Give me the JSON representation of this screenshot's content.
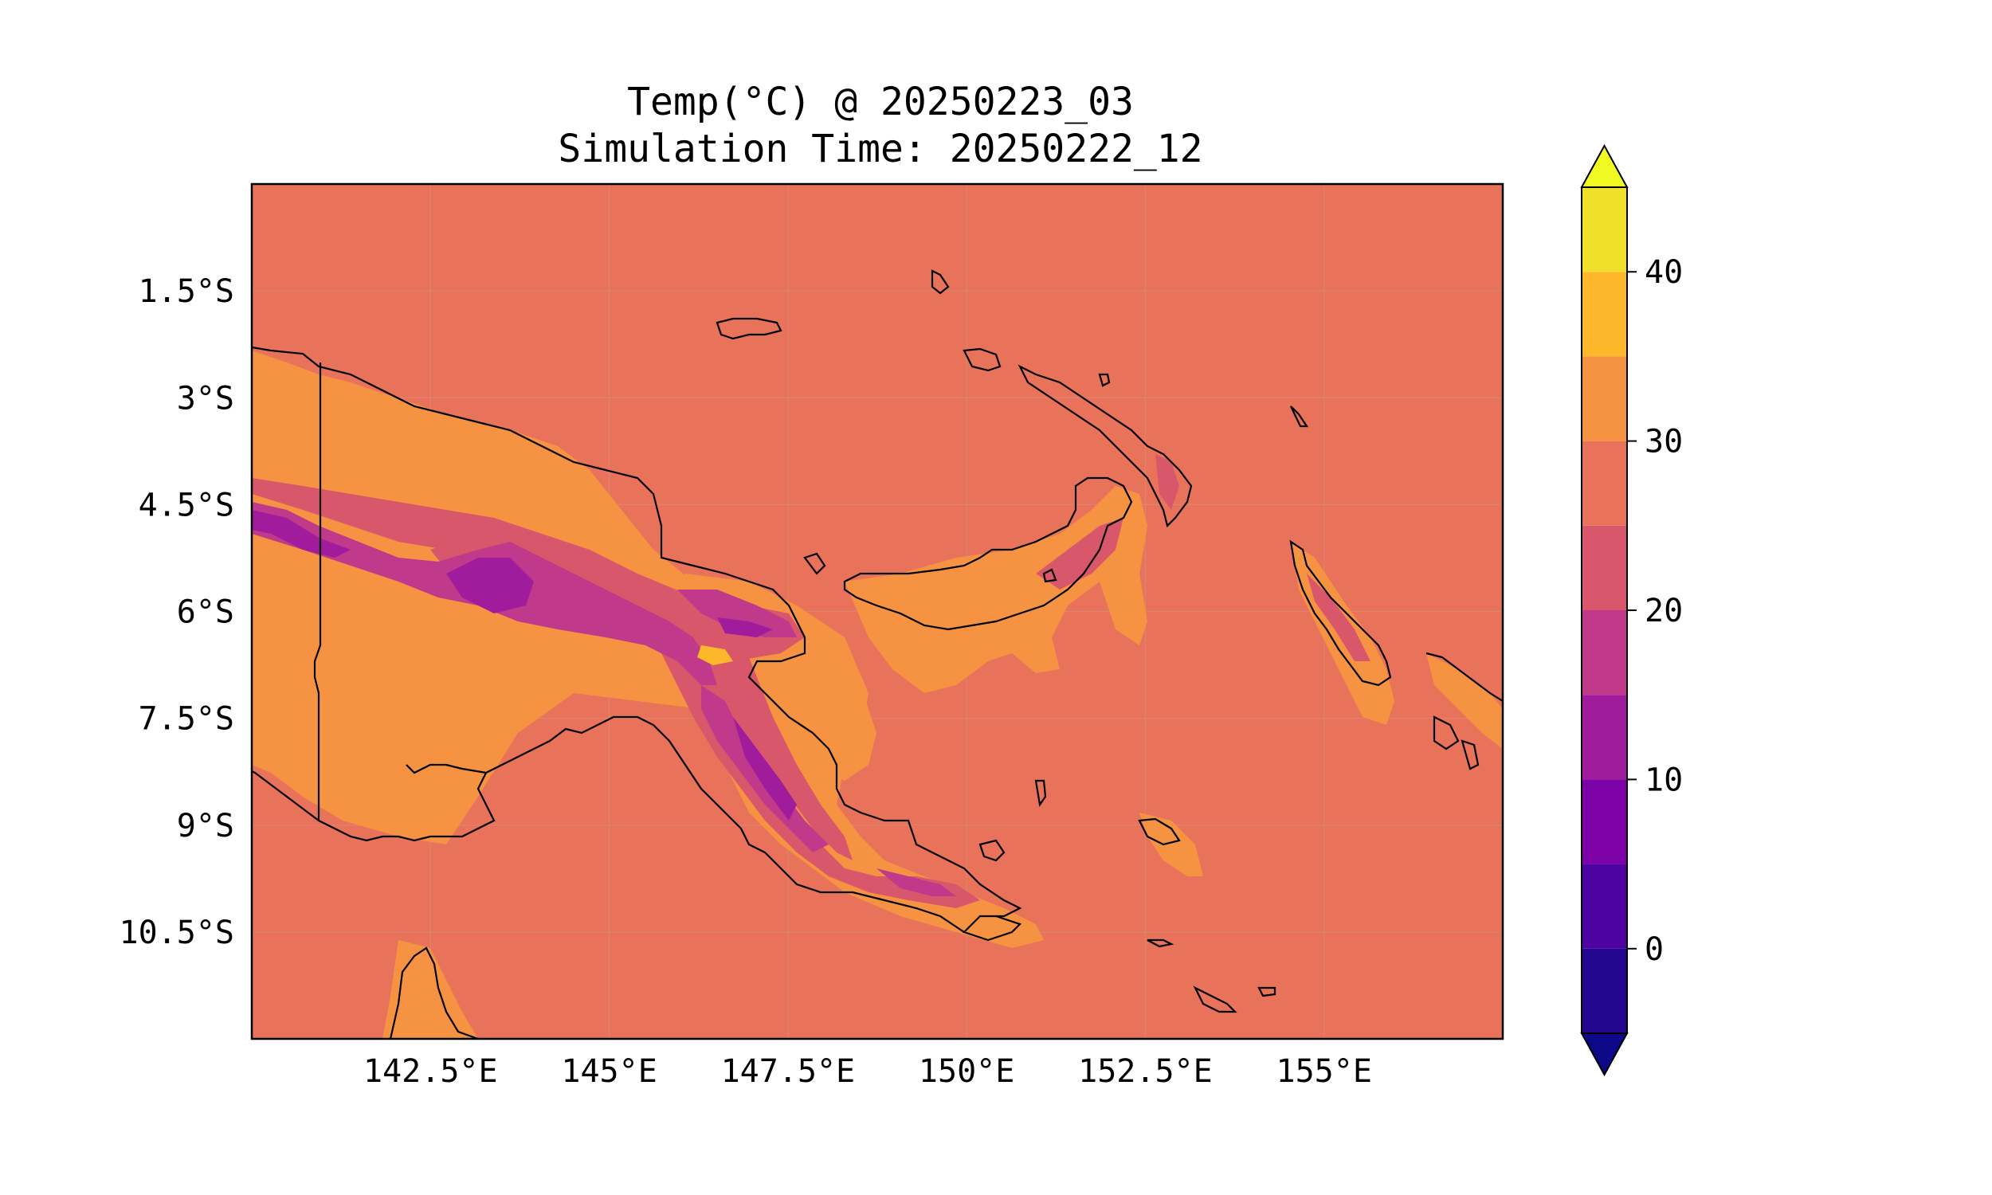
{
  "title": "Temp(°C) @ 20250223_03",
  "subtitle": "Simulation Time: 20250222_12",
  "map": {
    "lon_range": [
      140.0,
      157.5
    ],
    "lat_range": [
      -12.0,
      0.0
    ],
    "lon_ticks": [
      {
        "value": 142.5,
        "label": "142.5°E"
      },
      {
        "value": 145.0,
        "label": "145°E"
      },
      {
        "value": 147.5,
        "label": "147.5°E"
      },
      {
        "value": 150.0,
        "label": "150°E"
      },
      {
        "value": 152.5,
        "label": "152.5°E"
      },
      {
        "value": 155.0,
        "label": "155°E"
      }
    ],
    "lat_ticks": [
      {
        "value": -1.5,
        "label": "1.5°S"
      },
      {
        "value": -3.0,
        "label": "3°S"
      },
      {
        "value": -4.5,
        "label": "4.5°S"
      },
      {
        "value": -6.0,
        "label": "6°S"
      },
      {
        "value": -7.5,
        "label": "7.5°S"
      },
      {
        "value": -9.0,
        "label": "9°S"
      },
      {
        "value": -10.5,
        "label": "10.5°S"
      }
    ],
    "gridlines": true,
    "background_color": "#e8735a",
    "coastline_color": "#000000"
  },
  "colorbar": {
    "levels": [
      -5,
      0,
      5,
      10,
      15,
      20,
      25,
      30,
      35,
      40,
      45
    ],
    "colors": [
      "#23068f",
      "#4d02a1",
      "#7c02a8",
      "#a01c9c",
      "#c0398a",
      "#d8576b",
      "#e8735a",
      "#f69343",
      "#fdb72b",
      "#f0e02a"
    ],
    "under_color": "#0d0887",
    "over_color": "#f0f921",
    "ticks": [
      {
        "value": 0,
        "label": "0"
      },
      {
        "value": 10,
        "label": "10"
      },
      {
        "value": 20,
        "label": "20"
      },
      {
        "value": 30,
        "label": "30"
      },
      {
        "value": 40,
        "label": "40"
      }
    ],
    "extend": "both"
  }
}
